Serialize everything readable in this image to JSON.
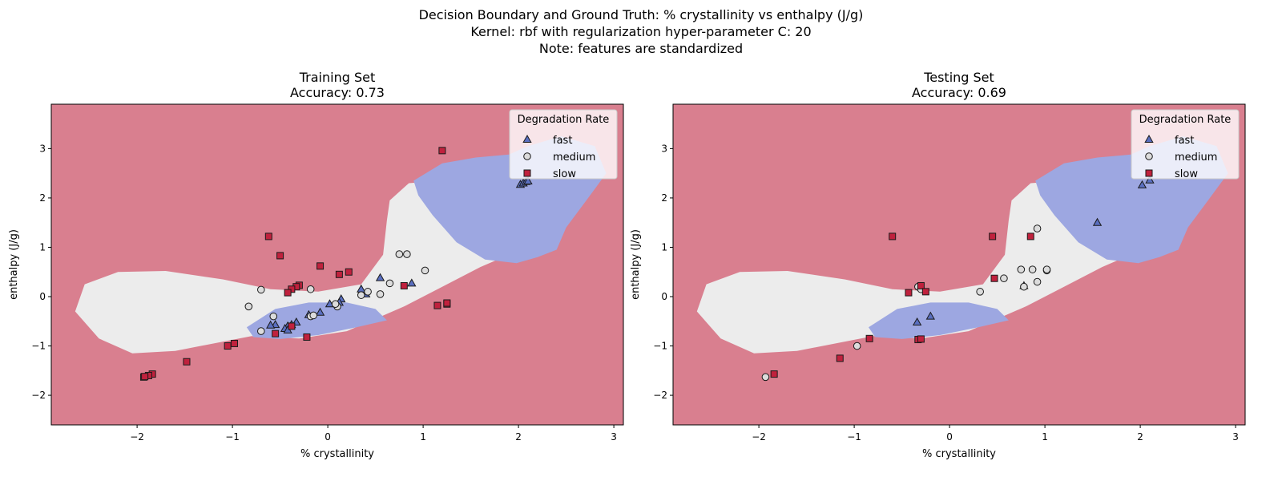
{
  "suptitle": {
    "line1": "Decision Boundary and Ground Truth: % crystallinity vs enthalpy (J/g)",
    "line2": "Kernel: rbf with regularization hyper-parameter C: 20",
    "line3": "Note: features are standardized"
  },
  "colors": {
    "slow": "#c0213d",
    "slow_region": "#d97f8f",
    "medium": "#dcdcdc",
    "medium_region": "#ececec",
    "fast": "#5a6fc0",
    "fast_region": "#9da7e1"
  },
  "chart_data": [
    {
      "type": "scatter",
      "title": "Training Set",
      "subtitle": "Accuracy: 0.73",
      "xlabel": "% crystallinity",
      "ylabel": "enthalpy (J/g)",
      "xlim": [
        -2.9,
        3.1
      ],
      "ylim": [
        -2.6,
        3.9
      ],
      "xticks": [
        -2,
        -1,
        0,
        1,
        2,
        3
      ],
      "yticks": [
        -2,
        -1,
        0,
        1,
        2,
        3
      ],
      "legend": {
        "title": "Degradation Rate",
        "position": "top-right",
        "entries": [
          "fast",
          "medium",
          "slow"
        ]
      },
      "series": [
        {
          "name": "fast",
          "marker": "triangle",
          "points": [
            [
              2.02,
              2.27
            ],
            [
              2.05,
              2.3
            ],
            [
              2.08,
              2.33
            ],
            [
              2.1,
              2.34
            ],
            [
              0.55,
              0.38
            ],
            [
              0.35,
              0.15
            ],
            [
              0.4,
              0.05
            ],
            [
              0.88,
              0.27
            ],
            [
              0.14,
              -0.05
            ],
            [
              0.12,
              -0.12
            ],
            [
              0.02,
              -0.15
            ],
            [
              -0.08,
              -0.32
            ],
            [
              -0.2,
              -0.37
            ],
            [
              -0.33,
              -0.52
            ],
            [
              -0.38,
              -0.57
            ],
            [
              -0.42,
              -0.6
            ],
            [
              -0.45,
              -0.65
            ],
            [
              -0.55,
              -0.57
            ],
            [
              -0.6,
              -0.58
            ],
            [
              -0.42,
              -0.68
            ]
          ]
        },
        {
          "name": "medium",
          "marker": "circle",
          "points": [
            [
              0.75,
              0.86
            ],
            [
              0.83,
              0.86
            ],
            [
              1.02,
              0.53
            ],
            [
              0.65,
              0.27
            ],
            [
              0.42,
              0.1
            ],
            [
              0.35,
              0.03
            ],
            [
              0.55,
              0.05
            ],
            [
              -0.18,
              0.15
            ],
            [
              -0.7,
              0.14
            ],
            [
              -0.83,
              -0.2
            ],
            [
              -0.57,
              -0.4
            ],
            [
              -0.18,
              -0.4
            ],
            [
              -0.15,
              -0.38
            ],
            [
              0.1,
              -0.2
            ],
            [
              0.08,
              -0.15
            ],
            [
              -0.7,
              -0.7
            ]
          ]
        },
        {
          "name": "slow",
          "marker": "square",
          "points": [
            [
              1.2,
              2.96
            ],
            [
              -0.62,
              1.22
            ],
            [
              -0.5,
              0.83
            ],
            [
              -0.08,
              0.62
            ],
            [
              0.12,
              0.45
            ],
            [
              0.22,
              0.5
            ],
            [
              -0.3,
              0.23
            ],
            [
              -0.33,
              0.2
            ],
            [
              -0.38,
              0.15
            ],
            [
              -0.42,
              0.08
            ],
            [
              0.8,
              0.22
            ],
            [
              1.15,
              -0.18
            ],
            [
              1.25,
              -0.15
            ],
            [
              1.25,
              -0.13
            ],
            [
              -0.38,
              -0.6
            ],
            [
              -0.22,
              -0.82
            ],
            [
              -0.55,
              -0.75
            ],
            [
              -1.05,
              -1.0
            ],
            [
              -0.98,
              -0.95
            ],
            [
              -1.48,
              -1.32
            ],
            [
              -1.84,
              -1.57
            ],
            [
              -1.88,
              -1.6
            ],
            [
              -1.93,
              -1.63
            ],
            [
              -1.92,
              -1.62
            ]
          ]
        }
      ]
    },
    {
      "type": "scatter",
      "title": "Testing Set",
      "subtitle": "Accuracy: 0.69",
      "xlabel": "% crystallinity",
      "ylabel": "enthalpy (J/g)",
      "xlim": [
        -2.9,
        3.1
      ],
      "ylim": [
        -2.6,
        3.9
      ],
      "xticks": [
        -2,
        -1,
        0,
        1,
        2,
        3
      ],
      "yticks": [
        -2,
        -1,
        0,
        1,
        2,
        3
      ],
      "legend": {
        "title": "Degradation Rate",
        "position": "top-right",
        "entries": [
          "fast",
          "medium",
          "slow"
        ]
      },
      "series": [
        {
          "name": "fast",
          "marker": "triangle",
          "points": [
            [
              2.1,
              2.36
            ],
            [
              2.02,
              2.26
            ],
            [
              1.55,
              1.5
            ],
            [
              0.78,
              0.22
            ],
            [
              -0.2,
              -0.4
            ],
            [
              -0.34,
              -0.52
            ]
          ]
        },
        {
          "name": "medium",
          "marker": "circle",
          "points": [
            [
              0.92,
              1.38
            ],
            [
              0.75,
              0.55
            ],
            [
              0.87,
              0.55
            ],
            [
              1.02,
              0.53
            ],
            [
              1.02,
              0.55
            ],
            [
              0.57,
              0.37
            ],
            [
              0.92,
              0.3
            ],
            [
              0.78,
              0.2
            ],
            [
              0.32,
              0.1
            ],
            [
              -0.33,
              0.2
            ],
            [
              -0.3,
              0.15
            ],
            [
              -0.97,
              -1.0
            ],
            [
              -1.93,
              -1.63
            ]
          ]
        },
        {
          "name": "slow",
          "marker": "square",
          "points": [
            [
              -0.6,
              1.22
            ],
            [
              0.45,
              1.22
            ],
            [
              0.85,
              1.22
            ],
            [
              0.47,
              0.37
            ],
            [
              -0.3,
              0.22
            ],
            [
              -0.25,
              0.1
            ],
            [
              -0.43,
              0.08
            ],
            [
              -0.84,
              -0.85
            ],
            [
              -0.33,
              -0.87
            ],
            [
              -0.3,
              -0.86
            ],
            [
              -1.15,
              -1.25
            ],
            [
              -1.84,
              -1.57
            ]
          ]
        }
      ]
    }
  ]
}
